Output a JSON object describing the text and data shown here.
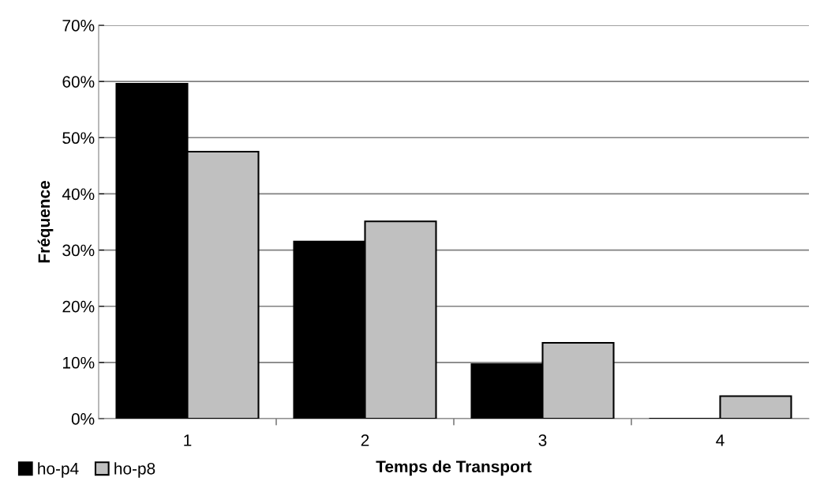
{
  "chart_data": {
    "type": "bar",
    "xlabel": "Temps de Transport",
    "ylabel": "Fréquence",
    "categories": [
      "1",
      "2",
      "3",
      "4"
    ],
    "series": [
      {
        "name": "ho-p4",
        "color": "#000000",
        "values": [
          59.6,
          31.5,
          9.7,
          0
        ]
      },
      {
        "name": "ho-p8",
        "color": "#c0c0c0",
        "values": [
          47.5,
          35.1,
          13.5,
          4.0
        ]
      }
    ],
    "ylim": [
      0,
      70
    ],
    "yticks": [
      {
        "value": 0,
        "label": "0%"
      },
      {
        "value": 10,
        "label": "10%"
      },
      {
        "value": 20,
        "label": "20%"
      },
      {
        "value": 30,
        "label": "30%"
      },
      {
        "value": 40,
        "label": "40%"
      },
      {
        "value": 50,
        "label": "50%"
      },
      {
        "value": 60,
        "label": "60%"
      },
      {
        "value": 70,
        "label": "70%"
      }
    ],
    "grid": "y",
    "legend": "bottom left"
  }
}
